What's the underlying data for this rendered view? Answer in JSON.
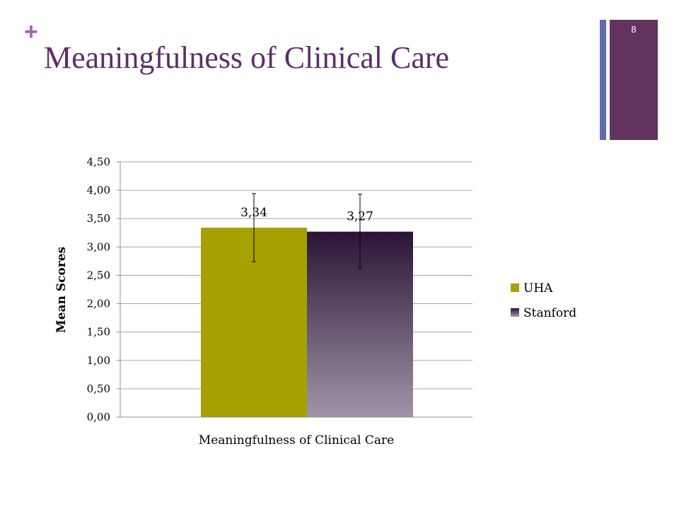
{
  "slide": {
    "plus_symbol": "+",
    "title": "Meaningfulness of Clinical Care",
    "page_number": "8"
  },
  "colors": {
    "accent_plus": "#a565b0",
    "title": "#5e2d6a",
    "deco_thin": "#5e6cae",
    "deco_thick": "#64325f",
    "uha": "#a4a100",
    "stanford_top": "#2a1436",
    "stanford_bottom": "#a096a8"
  },
  "chart_data": {
    "type": "bar",
    "title": "",
    "xlabel": "",
    "ylabel": "Mean Scores",
    "categories": [
      "Meaningfulness of Clinical Care"
    ],
    "series": [
      {
        "name": "UHA",
        "values": [
          3.34
        ],
        "labels": [
          "3,34"
        ],
        "error": [
          [
            2.74,
            3.94
          ]
        ]
      },
      {
        "name": "Stanford",
        "values": [
          3.27
        ],
        "labels": [
          "3,27"
        ],
        "error": [
          [
            2.62,
            3.93
          ]
        ]
      }
    ],
    "ylim": [
      0,
      4.5
    ],
    "yticks": [
      0,
      0.5,
      1,
      1.5,
      2,
      2.5,
      3,
      3.5,
      4,
      4.5
    ],
    "ytick_labels": [
      "0,00",
      "0,50",
      "1,00",
      "1,50",
      "2,00",
      "2,50",
      "3,00",
      "3,50",
      "4,00",
      "4,50"
    ],
    "grid": true,
    "legend_position": "right"
  }
}
